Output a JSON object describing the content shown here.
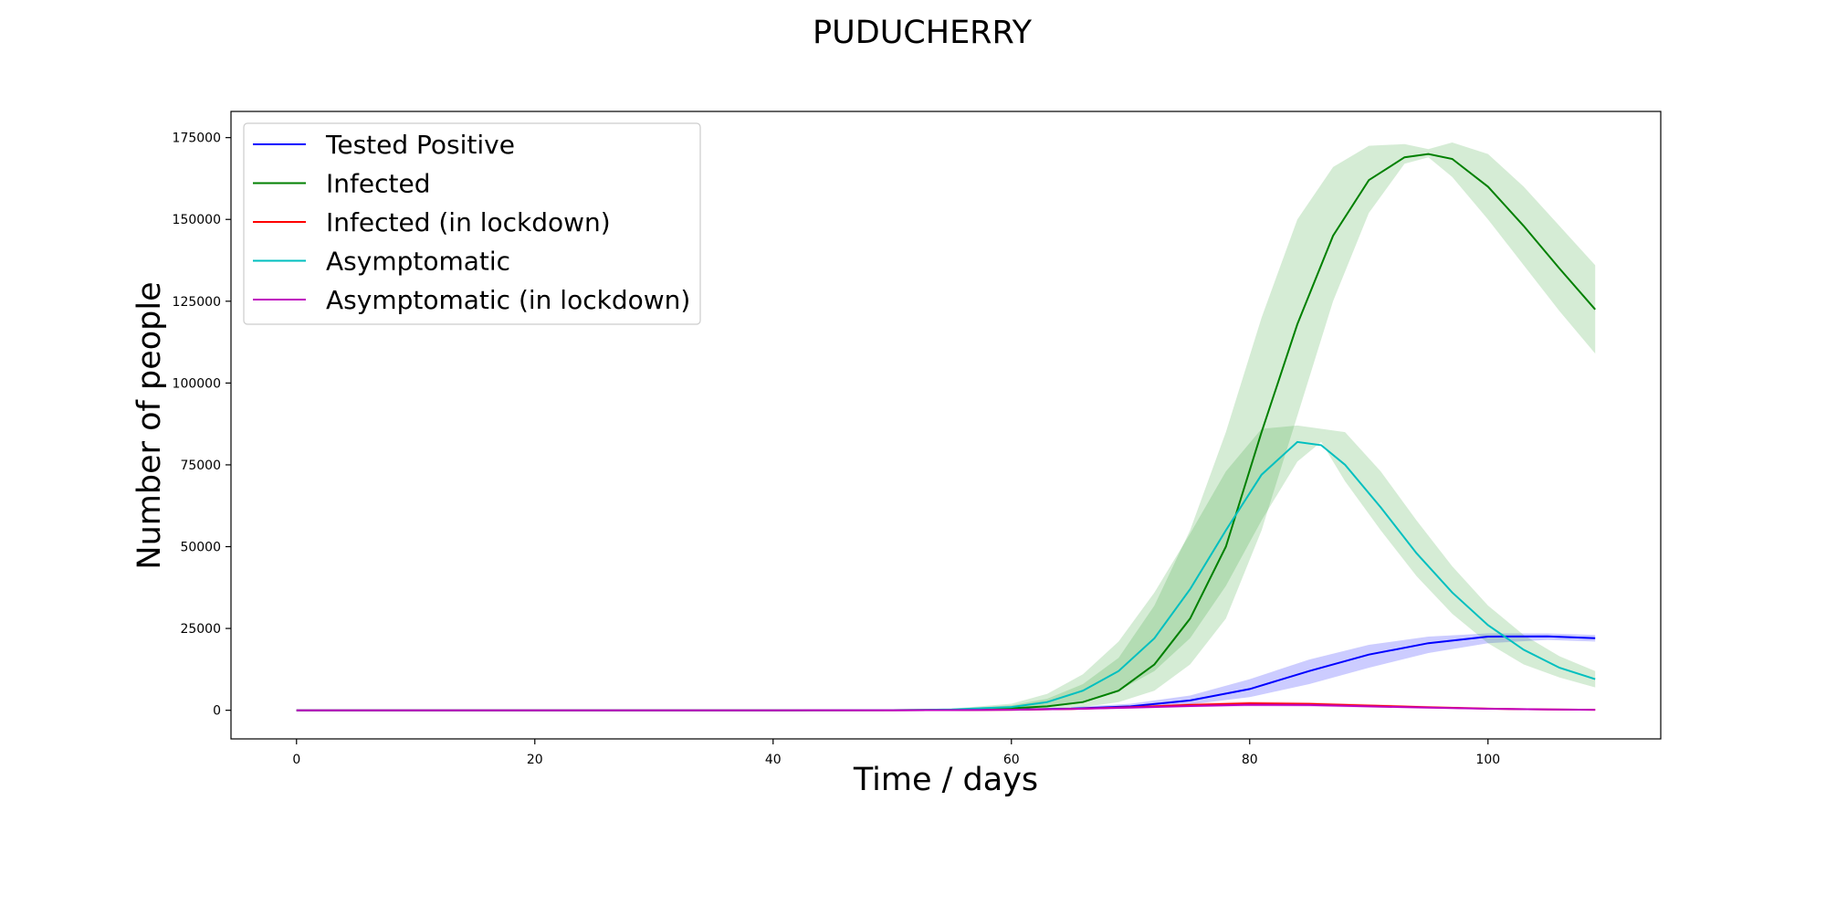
{
  "chart_data": {
    "type": "line",
    "title": "PUDUCHERRY",
    "xlabel": "Time / days",
    "ylabel": "Number of people",
    "xlim": [
      -5.5,
      114.5
    ],
    "ylim": [
      -8750,
      183000
    ],
    "xticks": [
      0,
      20,
      40,
      60,
      80,
      100
    ],
    "yticks": [
      0,
      25000,
      50000,
      75000,
      100000,
      125000,
      150000,
      175000
    ],
    "grid": false,
    "legend_position": "top-left",
    "series": [
      {
        "name": "Tested Positive",
        "color": "#0000ff",
        "band_color": "#0000ff",
        "x": [
          0,
          10,
          20,
          30,
          40,
          50,
          55,
          60,
          65,
          70,
          75,
          80,
          85,
          90,
          95,
          100,
          105,
          109
        ],
        "y": [
          0,
          0,
          0,
          0,
          0,
          20,
          80,
          200,
          500,
          1200,
          3000,
          6500,
          12000,
          17000,
          20500,
          22500,
          22600,
          22000
        ],
        "band_low": [
          0,
          0,
          0,
          0,
          0,
          10,
          40,
          100,
          300,
          700,
          1800,
          4000,
          8000,
          13000,
          17500,
          20500,
          21500,
          21000
        ],
        "band_high": [
          0,
          0,
          0,
          0,
          0,
          30,
          120,
          400,
          900,
          2000,
          4500,
          9500,
          15500,
          20000,
          22500,
          23500,
          23500,
          23000
        ]
      },
      {
        "name": "Infected",
        "color": "#008000",
        "band_color": "#2ca02c",
        "x": [
          0,
          10,
          20,
          30,
          40,
          50,
          55,
          60,
          63,
          66,
          69,
          72,
          75,
          78,
          81,
          84,
          87,
          90,
          93,
          95,
          97,
          100,
          103,
          106,
          109
        ],
        "y": [
          0,
          0,
          0,
          0,
          0,
          30,
          150,
          600,
          1200,
          2500,
          6000,
          14000,
          28000,
          50000,
          85000,
          118000,
          145000,
          162000,
          169000,
          170000,
          168500,
          160000,
          148000,
          135000,
          122500
        ],
        "band_low": [
          0,
          0,
          0,
          0,
          0,
          10,
          60,
          250,
          500,
          1000,
          2500,
          6000,
          14000,
          28000,
          55000,
          90000,
          125000,
          152000,
          167000,
          169000,
          163000,
          150000,
          136000,
          122000,
          109000
        ],
        "band_high": [
          0,
          0,
          0,
          0,
          0,
          60,
          400,
          1500,
          3500,
          8000,
          16000,
          32000,
          55000,
          85000,
          120000,
          150000,
          166000,
          172500,
          173000,
          171500,
          173500,
          170000,
          160000,
          148000,
          136000
        ]
      },
      {
        "name": "Infected (in lockdown)",
        "color": "#ff0000",
        "band_color": "#ff0000",
        "x": [
          0,
          10,
          20,
          30,
          40,
          50,
          55,
          60,
          65,
          70,
          75,
          80,
          85,
          90,
          95,
          100,
          105,
          109
        ],
        "y": [
          0,
          0,
          0,
          0,
          0,
          10,
          40,
          150,
          400,
          900,
          1600,
          2100,
          1900,
          1400,
          900,
          500,
          250,
          150
        ],
        "band_low": [
          0,
          0,
          0,
          0,
          0,
          5,
          20,
          80,
          250,
          600,
          1100,
          1600,
          1400,
          1000,
          600,
          300,
          150,
          80
        ],
        "band_high": [
          0,
          0,
          0,
          0,
          0,
          20,
          70,
          250,
          600,
          1300,
          2200,
          2700,
          2500,
          1900,
          1300,
          800,
          400,
          250
        ]
      },
      {
        "name": "Asymptomatic",
        "color": "#00bfbf",
        "band_color": "#2ca02c",
        "x": [
          0,
          10,
          20,
          30,
          40,
          50,
          55,
          60,
          63,
          66,
          69,
          72,
          75,
          78,
          81,
          84,
          86,
          88,
          91,
          94,
          97,
          100,
          103,
          106,
          109
        ],
        "y": [
          0,
          0,
          0,
          0,
          0,
          50,
          250,
          1000,
          2500,
          6000,
          12000,
          22000,
          37000,
          55000,
          72000,
          82000,
          81000,
          75000,
          62000,
          48000,
          36000,
          26000,
          18500,
          13000,
          9500
        ],
        "band_low": [
          0,
          0,
          0,
          0,
          0,
          20,
          100,
          400,
          1000,
          2500,
          6000,
          12000,
          22000,
          38000,
          58000,
          76000,
          82000,
          70000,
          55000,
          41000,
          29500,
          20500,
          14000,
          10000,
          7000
        ],
        "band_high": [
          0,
          0,
          0,
          0,
          0,
          100,
          500,
          2000,
          5000,
          11000,
          21000,
          36000,
          54000,
          73000,
          86000,
          87000,
          86000,
          85000,
          73000,
          58000,
          44000,
          32000,
          23000,
          16500,
          12000
        ]
      },
      {
        "name": "Asymptomatic (in lockdown)",
        "color": "#bf00bf",
        "band_color": "#bf00bf",
        "x": [
          0,
          10,
          20,
          30,
          40,
          50,
          55,
          60,
          65,
          70,
          75,
          80,
          85,
          90,
          95,
          100,
          105,
          109
        ],
        "y": [
          0,
          0,
          0,
          0,
          0,
          10,
          40,
          150,
          400,
          800,
          1300,
          1700,
          1600,
          1200,
          800,
          450,
          250,
          150
        ],
        "band_low": [
          0,
          0,
          0,
          0,
          0,
          5,
          20,
          80,
          250,
          500,
          900,
          1200,
          1100,
          800,
          500,
          250,
          120,
          80
        ],
        "band_high": [
          0,
          0,
          0,
          0,
          0,
          20,
          70,
          250,
          600,
          1100,
          1800,
          2300,
          2200,
          1700,
          1100,
          700,
          400,
          250
        ]
      }
    ]
  }
}
